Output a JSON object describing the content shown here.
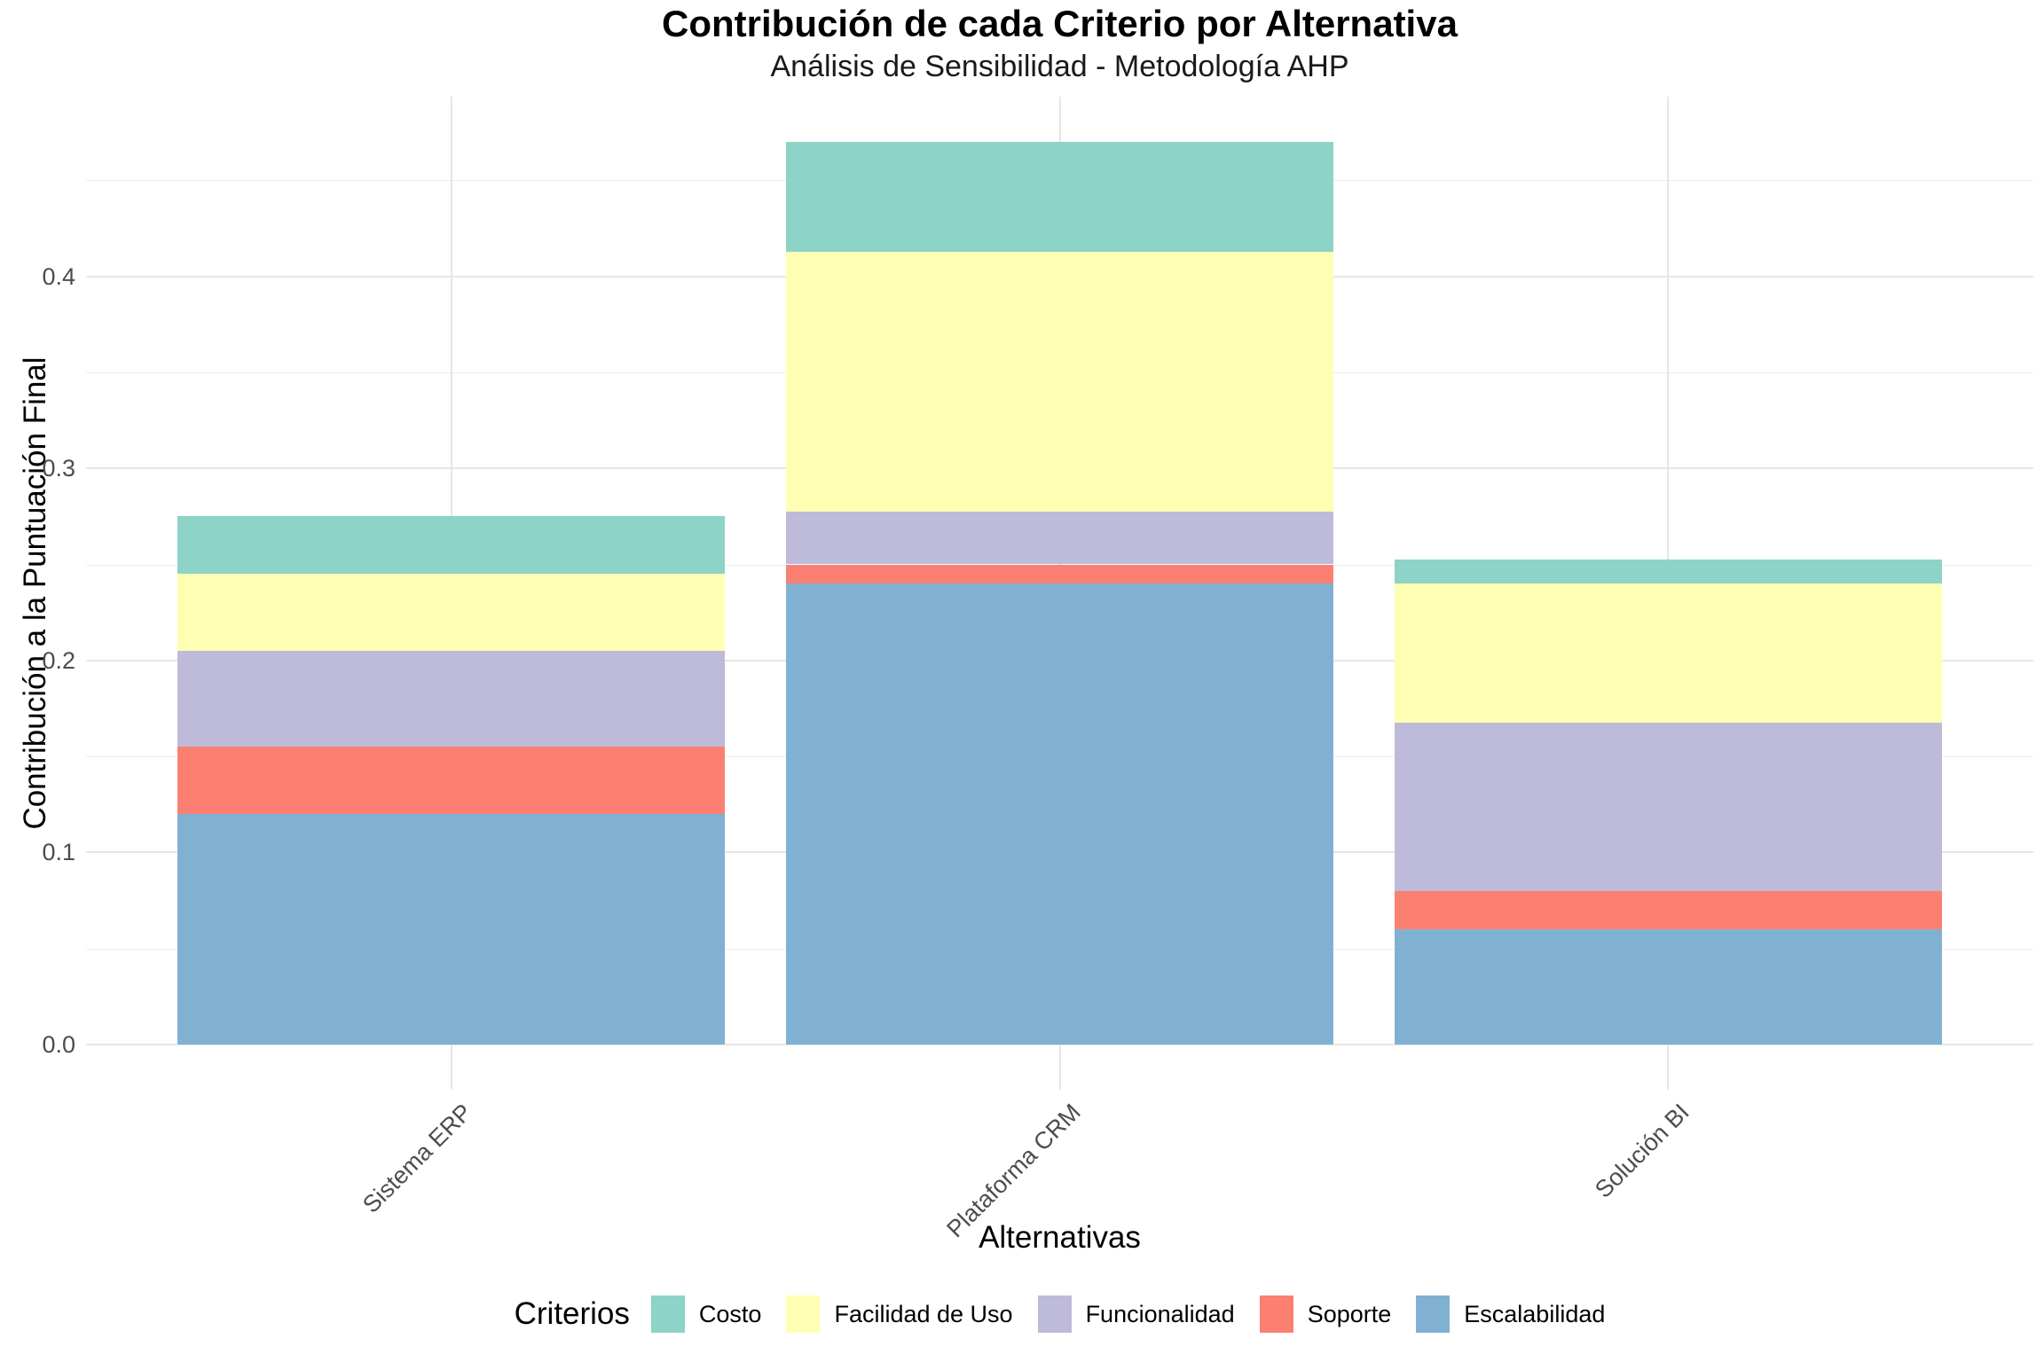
{
  "style": {
    "background": "#FFFFFF",
    "grid_major_color": "#E6E6E6",
    "grid_minor_color": "#EDEDED",
    "tick_label_color": "#4D4D4D",
    "text_color": "#000000"
  },
  "chart_data": {
    "type": "bar",
    "stacked": true,
    "title": "Contribución de cada Criterio por Alternativa",
    "subtitle": "Análisis de Sensibilidad - Metodología AHP",
    "xlabel": "Alternativas",
    "ylabel": "Contribución a la Puntuación Final",
    "grid": true,
    "x_label_angle": 45,
    "categories": [
      "Sistema ERP",
      "Plataforma CRM",
      "Solución BI"
    ],
    "series": [
      {
        "name": "Escalabilidad",
        "color": "#80B1D3",
        "values": [
          0.12,
          0.24,
          0.06
        ]
      },
      {
        "name": "Soporte",
        "color": "#FB8072",
        "values": [
          0.035,
          0.01,
          0.02
        ]
      },
      {
        "name": "Funcionalidad",
        "color": "#BEBADA",
        "values": [
          0.05,
          0.0275,
          0.0875
        ]
      },
      {
        "name": "Facilidad de Uso",
        "color": "#FFFFB3",
        "values": [
          0.04,
          0.135,
          0.0725
        ]
      },
      {
        "name": "Costo",
        "color": "#8DD3C7",
        "values": [
          0.03,
          0.0575,
          0.0125
        ]
      }
    ],
    "totals": [
      0.275,
      0.47,
      0.2525
    ],
    "legend": {
      "title": "Criterios",
      "position": "bottom",
      "entries": [
        "Costo",
        "Facilidad de Uso",
        "Funcionalidad",
        "Soporte",
        "Escalabilidad"
      ]
    },
    "y_axis": {
      "ticks": [
        "0.0",
        "0.1",
        "0.2",
        "0.3",
        "0.4"
      ],
      "tick_values": [
        0,
        0.1,
        0.2,
        0.3,
        0.4
      ],
      "minor_tick_values": [
        0.05,
        0.15,
        0.25,
        0.35,
        0.45
      ],
      "range": [
        -0.0235,
        0.4935
      ]
    }
  }
}
